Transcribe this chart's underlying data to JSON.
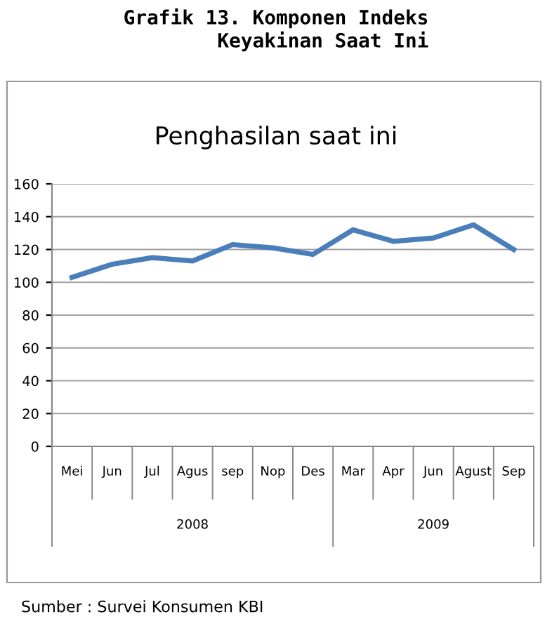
{
  "chart_data": {
    "type": "line",
    "title": "Grafik 13. Komponen Indeks\nKeyakinan Saat Ini",
    "subtitle": "Penghasilan saat ini",
    "categories": [
      "Mei",
      "Jun",
      "Jul",
      "Agus",
      "sep",
      "Nop",
      "Des",
      "Mar",
      "Apr",
      "Jun",
      "Agust",
      "Sep"
    ],
    "series": [
      {
        "color": "#4a7ebb",
        "values": [
          103,
          111,
          115,
          113,
          123,
          121,
          117,
          132,
          125,
          127,
          135,
          120
        ]
      }
    ],
    "ylim": [
      0,
      160
    ],
    "yticks": [
      0,
      20,
      40,
      60,
      80,
      100,
      120,
      140,
      160
    ],
    "grid": "y",
    "marker": "none",
    "line_style": "solid",
    "annotations": [
      "2008",
      "2009",
      "Sumber : Survei Konsumen KBI"
    ]
  }
}
